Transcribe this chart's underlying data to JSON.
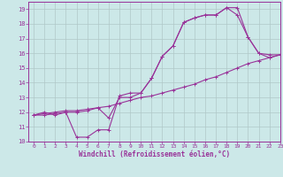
{
  "background_color": "#cce8e8",
  "grid_color": "#b0c8c8",
  "line_color": "#993399",
  "xlim": [
    -0.5,
    23
  ],
  "ylim": [
    10,
    19.5
  ],
  "xticks": [
    0,
    1,
    2,
    3,
    4,
    5,
    6,
    7,
    8,
    9,
    10,
    11,
    12,
    13,
    14,
    15,
    16,
    17,
    18,
    19,
    20,
    21,
    22,
    23
  ],
  "yticks": [
    10,
    11,
    12,
    13,
    14,
    15,
    16,
    17,
    18,
    19
  ],
  "xlabel": "Windchill (Refroidissement éolien,°C)",
  "series": [
    {
      "x": [
        0,
        1,
        2,
        3,
        4,
        5,
        6,
        7,
        8,
        9,
        10,
        11,
        12,
        13,
        14,
        15,
        16,
        17,
        18,
        19,
        20,
        21,
        22,
        23
      ],
      "y": [
        11.8,
        12.0,
        11.8,
        12.0,
        10.3,
        10.3,
        10.8,
        10.8,
        13.1,
        13.3,
        13.3,
        14.3,
        15.8,
        16.5,
        18.1,
        18.4,
        18.6,
        18.6,
        19.1,
        18.6,
        17.1,
        16.0,
        15.7,
        15.9
      ]
    },
    {
      "x": [
        0,
        1,
        2,
        3,
        4,
        5,
        6,
        7,
        8,
        9,
        10,
        11,
        12,
        13,
        14,
        15,
        16,
        17,
        18,
        19,
        20,
        21,
        22,
        23
      ],
      "y": [
        11.8,
        11.9,
        12.0,
        12.1,
        12.1,
        12.2,
        12.3,
        12.4,
        12.6,
        12.8,
        13.0,
        13.1,
        13.3,
        13.5,
        13.7,
        13.9,
        14.2,
        14.4,
        14.7,
        15.0,
        15.3,
        15.5,
        15.7,
        15.9
      ]
    },
    {
      "x": [
        0,
        1,
        2,
        3,
        4,
        5,
        6,
        7,
        8,
        9,
        10,
        11,
        12,
        13,
        14,
        15,
        16,
        17,
        18,
        19,
        20,
        21,
        22,
        23
      ],
      "y": [
        11.8,
        11.8,
        11.9,
        12.0,
        12.0,
        12.1,
        12.3,
        11.6,
        13.0,
        13.0,
        13.3,
        14.3,
        15.8,
        16.5,
        18.1,
        18.4,
        18.6,
        18.6,
        19.1,
        19.1,
        17.1,
        16.0,
        15.9,
        15.9
      ]
    }
  ]
}
